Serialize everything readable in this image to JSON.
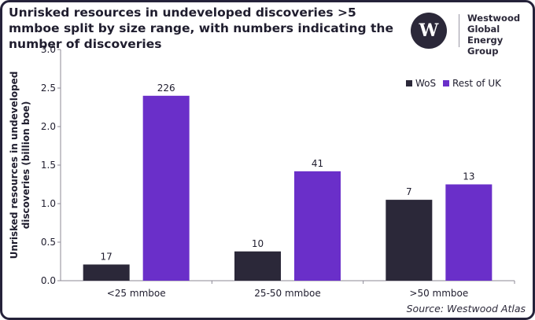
{
  "header": {
    "title": "Unrisked resources in undeveloped discoveries >5 mmboe split by size range, with numbers indicating the number of discoveries"
  },
  "logo": {
    "mark": "W",
    "lines": [
      "Westwood",
      "Global Energy",
      "Group"
    ]
  },
  "source": "Source: Westwood Atlas",
  "colors": {
    "WoS": "#2b2839",
    "Rest of UK": "#6a2fc9"
  },
  "chart_data": {
    "type": "bar",
    "categories": [
      "<25 mmboe",
      "25-50 mmboe",
      ">50 mmboe"
    ],
    "series": [
      {
        "name": "WoS",
        "values": [
          0.21,
          0.38,
          1.05
        ],
        "labels": [
          "17",
          "10",
          "7"
        ]
      },
      {
        "name": "Rest of UK",
        "values": [
          2.4,
          1.42,
          1.25
        ],
        "labels": [
          "226",
          "41",
          "13"
        ]
      }
    ],
    "ylabel": "Unrisked resources in undeveloped discoveries (billion boe)",
    "ylabel_lines": [
      "Unrisked resources in undeveloped",
      "discoveries (billion boe)"
    ],
    "ylim": [
      0,
      3.0
    ],
    "yticks": [
      "0.0",
      "0.5",
      "1.0",
      "1.5",
      "2.0",
      "2.5",
      "3.0"
    ],
    "grid": false,
    "legend_position": "top-right"
  }
}
